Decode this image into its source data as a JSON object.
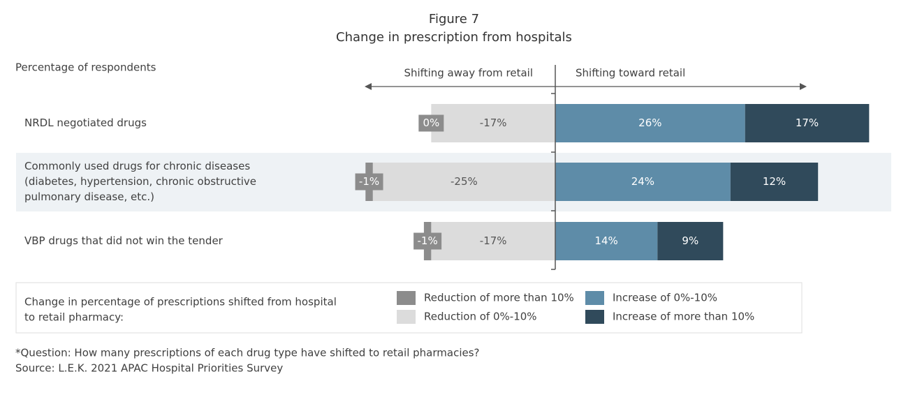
{
  "chart_data": {
    "type": "bar",
    "orientation": "horizontal",
    "stacked": "diverging",
    "title": "Figure 7",
    "subtitle": "Change in prescription from hospitals",
    "ylabel": "Percentage of respondents",
    "direction_labels": {
      "left": "Shifting away from retail",
      "right": "Shifting toward retail"
    },
    "categories": [
      [
        "NRDL negotiated drugs"
      ],
      [
        "Commonly used drugs for chronic diseases",
        "(diabetes, hypertension, chronic obstructive",
        "pulmonary disease, etc.)"
      ],
      [
        "VBP drugs that did not win the tender"
      ]
    ],
    "series": [
      {
        "name": "Reduction of more than 10%",
        "color": "#8c8c8c",
        "values": [
          0,
          -1,
          -1
        ],
        "labels": [
          "0%",
          "-1%",
          "-1%"
        ]
      },
      {
        "name": "Reduction of 0%-10%",
        "color": "#dcdcdc",
        "values": [
          -17,
          -25,
          -17
        ],
        "labels": [
          "-17%",
          "-25%",
          "-17%"
        ]
      },
      {
        "name": "Increase of 0%-10%",
        "color": "#5e8ca8",
        "values": [
          26,
          24,
          14
        ],
        "labels": [
          "26%",
          "24%",
          "14%"
        ]
      },
      {
        "name": "Increase of more than 10%",
        "color": "#304a5b",
        "values": [
          17,
          12,
          9
        ],
        "labels": [
          "17%",
          "12%",
          "9%"
        ]
      }
    ],
    "legend_title": [
      "Change in percentage of prescriptions shifted from hospital",
      "to retail pharmacy:"
    ],
    "legend_position": "bottom",
    "grid": false
  },
  "footnotes": [
    "*Question: How many prescriptions of each drug type have shifted to retail pharmacies?",
    "Source: L.E.K. 2021 APAC Hospital Priorities Survey"
  ]
}
